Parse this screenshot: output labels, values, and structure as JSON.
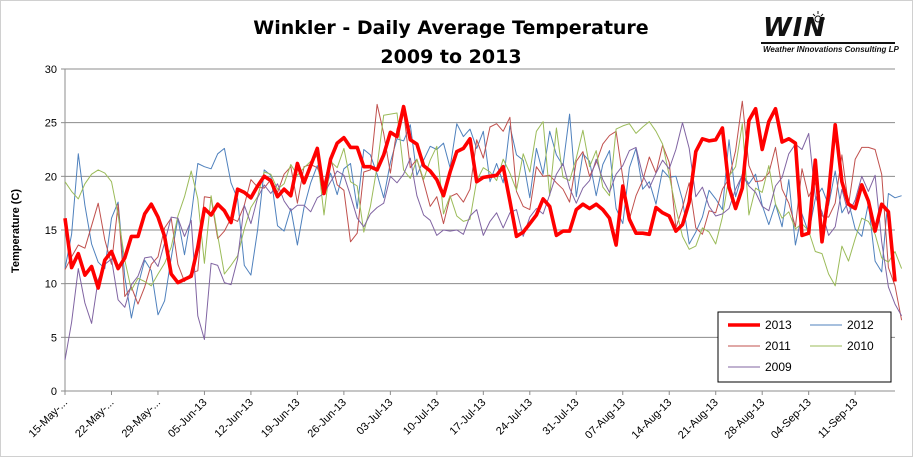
{
  "colors": {
    "2013": "#ff0000",
    "2012": "#4f81bd",
    "2011": "#c0504d",
    "2010": "#9bbb59",
    "2009": "#8064a2",
    "grid": "#8c8c8c",
    "axis": "#8c8c8c"
  },
  "logo": {
    "word": "WIN",
    "subtitle": "Weather INnovations Consulting LP",
    "sun_icon": "sun-icon"
  },
  "chart_data": {
    "type": "line",
    "title_line1": "Winkler  - Daily Average Temperature",
    "title_line2": "2009 to 2013",
    "xlabel": "",
    "ylabel": "Temperature (C)",
    "ylim": [
      0,
      30
    ],
    "yticks": [
      0,
      5,
      10,
      15,
      20,
      25,
      30
    ],
    "grid": true,
    "legend_position": "bottom-right",
    "x_start": "15-May",
    "x_end": "17-Sep",
    "x_ticks": [
      "15-May-...",
      "22-May-...",
      "29-May-...",
      "05-Jun-13",
      "12-Jun-13",
      "19-Jun-13",
      "26-Jun-13",
      "03-Jul-13",
      "10-Jul-13",
      "17-Jul-13",
      "24-Jul-13",
      "31-Jul-13",
      "07-Aug-13",
      "14-Aug-13",
      "21-Aug-13",
      "28-Aug-13",
      "04-Sep-13",
      "11-Sep-13"
    ],
    "series": [
      {
        "name": "2013",
        "values": [
          16.1,
          11.5,
          12.8,
          10.8,
          11.6,
          9.6,
          12.2,
          13.0,
          11.4,
          12.4,
          14.4,
          14.4,
          16.5,
          17.4,
          16.2,
          14.4,
          10.9,
          10.1,
          10.4,
          10.7,
          13.4,
          17.0,
          16.4,
          17.4,
          16.8,
          15.7,
          18.8,
          18.5,
          18.0,
          19.1,
          20.0,
          19.6,
          18.1,
          18.8,
          18.2,
          21.2,
          19.4,
          21.0,
          22.6,
          18.4,
          21.6,
          23.1,
          23.6,
          22.7,
          22.7,
          20.9,
          20.9,
          20.6,
          22.0,
          24.1,
          23.7,
          26.5,
          23.4,
          23.0,
          21.0,
          20.5,
          19.7,
          18.2,
          20.4,
          22.3,
          22.6,
          23.5,
          19.5,
          19.9,
          20.0,
          20.1,
          20.9,
          17.7,
          14.4,
          14.8,
          15.6,
          16.4,
          17.9,
          17.2,
          14.5,
          14.9,
          14.9,
          16.9,
          17.4,
          17.0,
          17.4,
          16.9,
          16.1,
          13.6,
          19.1,
          16.0,
          14.7,
          14.7,
          14.6,
          17.1,
          16.6,
          16.3,
          14.9,
          15.5,
          17.6,
          22.3,
          23.5,
          23.3,
          23.4,
          24.5,
          19.0,
          17.0,
          18.9,
          25.2,
          26.3,
          22.5,
          25.1,
          26.3,
          23.2,
          23.5,
          23.1,
          14.5,
          14.7,
          21.5,
          13.9,
          18.4,
          24.8,
          19.5,
          17.4,
          17.0,
          19.2,
          17.7,
          14.9,
          17.4,
          16.7,
          10.2
        ]
      },
      {
        "name": "2012",
        "values": [
          11.4,
          14.6,
          22.1,
          17.3,
          13.7,
          12.0,
          11.4,
          16.1,
          17.6,
          10.6,
          6.8,
          9.8,
          12.2,
          11.2,
          7.1,
          8.4,
          12.4,
          16.1,
          12.7,
          16.3,
          21.2,
          20.9,
          20.7,
          22.1,
          22.6,
          19.4,
          17.9,
          11.7,
          10.8,
          15.0,
          20.6,
          20.1,
          15.4,
          14.9,
          17.0,
          13.6,
          17.1,
          19.4,
          21.0,
          18.4,
          20.3,
          18.3,
          20.7,
          21.2,
          17.0,
          22.5,
          22.0,
          20.2,
          18.0,
          21.3,
          23.5,
          23.3,
          24.8,
          20.1,
          21.5,
          22.8,
          22.5,
          23.1,
          20.8,
          24.9,
          23.7,
          24.4,
          22.6,
          24.2,
          19.5,
          21.2,
          19.4,
          24.7,
          22.0,
          21.5,
          18.0,
          22.6,
          20.2,
          24.2,
          22.0,
          21.0,
          25.8,
          18.1,
          22.1,
          21.4,
          18.2,
          21.1,
          22.4,
          17.0,
          15.6,
          20.8,
          22.6,
          18.8,
          19.5,
          17.4,
          20.6,
          19.9,
          20.0,
          17.8,
          13.7,
          14.8,
          16.2,
          18.7,
          17.9,
          16.9,
          23.4,
          18.1,
          20.2,
          19.3,
          20.2,
          17.3,
          15.5,
          17.4,
          15.3,
          19.7,
          13.6,
          16.5,
          14.7,
          17.9,
          18.9,
          17.3,
          20.5,
          16.6,
          17.6,
          15.1,
          14.4,
          17.5,
          12.1,
          11.1,
          18.4,
          18.0,
          18.2
        ]
      },
      {
        "name": "2011",
        "values": [
          11.3,
          12.5,
          13.6,
          13.3,
          15.4,
          17.5,
          14.1,
          11.8,
          17.4,
          8.8,
          9.7,
          8.1,
          9.7,
          11.8,
          12.5,
          15.2,
          16.1,
          11.8,
          10.2,
          11.0,
          11.2,
          18.1,
          18.0,
          14.2,
          14.9,
          16.1,
          15.8,
          17.3,
          19.7,
          19.0,
          18.9,
          19.7,
          18.5,
          20.2,
          20.9,
          17.5,
          20.9,
          21.1,
          20.8,
          19.3,
          21.8,
          19.2,
          18.7,
          13.9,
          14.7,
          20.4,
          20.6,
          26.7,
          24.0,
          20.3,
          24.4,
          26.0,
          20.8,
          21.6,
          19.5,
          17.2,
          18.1,
          15.6,
          18.1,
          18.4,
          17.6,
          18.8,
          23.4,
          21.7,
          24.6,
          24.9,
          24.2,
          25.5,
          18.6,
          17.2,
          16.9,
          20.9,
          20.0,
          20.1,
          19.4,
          18.8,
          17.6,
          21.4,
          22.3,
          20.0,
          21.3,
          23.0,
          23.8,
          24.2,
          19.9,
          16.0,
          18.2,
          19.6,
          21.8,
          20.3,
          22.9,
          21.3,
          15.2,
          17.1,
          19.4,
          15.2,
          14.6,
          16.8,
          16.6,
          18.8,
          19.8,
          22.4,
          27.0,
          21.0,
          19.5,
          19.6,
          20.3,
          22.7,
          18.8,
          17.5,
          15.3,
          20.7,
          18.1,
          19.4,
          16.3,
          16.2,
          17.5,
          22.0,
          17.3,
          21.6,
          22.7,
          22.7,
          22.5,
          20.2,
          11.5,
          9.8,
          6.6
        ]
      },
      {
        "name": "2010",
        "values": [
          19.5,
          18.6,
          17.9,
          19.3,
          20.2,
          20.6,
          20.3,
          19.5,
          16.4,
          12.2,
          9.4,
          10.5,
          10.2,
          9.8,
          10.9,
          11.9,
          13.4,
          16.3,
          18.1,
          20.5,
          17.9,
          11.9,
          18.2,
          14.5,
          10.9,
          11.7,
          12.6,
          15.1,
          17.1,
          18.1,
          20.4,
          20.2,
          18.8,
          19.3,
          21.1,
          20.1,
          20.8,
          21.4,
          21.9,
          16.4,
          21.4,
          20.8,
          22.6,
          19.5,
          19.1,
          14.8,
          17.2,
          20.9,
          25.7,
          25.8,
          25.9,
          20.6,
          19.8,
          21.6,
          19.7,
          21.5,
          22.8,
          16.5,
          18.2,
          16.3,
          15.8,
          16.0,
          19.6,
          20.8,
          20.4,
          19.6,
          21.6,
          20.3,
          18.7,
          22.1,
          20.4,
          24.2,
          25.1,
          18.2,
          24.5,
          19.9,
          19.6,
          21.7,
          24.3,
          20.9,
          22.4,
          19.0,
          18.2,
          24.4,
          24.7,
          24.9,
          24.0,
          24.6,
          25.1,
          24.2,
          23.0,
          20.1,
          17.0,
          14.4,
          13.2,
          13.5,
          15.2,
          14.8,
          13.7,
          16.2,
          20.0,
          20.9,
          24.9,
          16.4,
          18.9,
          18.5,
          21.0,
          17.4,
          16.1,
          16.7,
          15.1,
          15.6,
          14.9,
          13.0,
          12.8,
          10.9,
          9.8,
          13.5,
          12.1,
          14.2,
          16.1,
          15.8,
          14.6,
          12.4,
          12.0,
          13.0,
          11.4
        ]
      },
      {
        "name": "2009",
        "values": [
          2.9,
          6.4,
          11.4,
          8.2,
          6.3,
          10.4,
          11.8,
          12.3,
          8.5,
          7.8,
          9.9,
          10.7,
          12.4,
          12.5,
          11.6,
          13.8,
          16.2,
          16.1,
          14.4,
          15.9,
          7.0,
          4.8,
          11.9,
          11.7,
          10.1,
          9.9,
          12.3,
          17.3,
          15.6,
          18.0,
          19.2,
          18.4,
          19.3,
          17.7,
          16.8,
          17.3,
          17.3,
          16.7,
          18.0,
          18.4,
          19.5,
          20.5,
          20.1,
          18.2,
          16.1,
          15.3,
          16.5,
          17.1,
          17.5,
          20.0,
          19.4,
          20.2,
          21.7,
          18.2,
          16.4,
          15.9,
          14.5,
          15.0,
          14.9,
          15.0,
          14.6,
          16.3,
          16.9,
          14.5,
          15.8,
          16.6,
          15.2,
          16.6,
          16.9,
          14.4,
          16.2,
          17.0,
          16.5,
          18.3,
          20.2,
          21.2,
          18.9,
          17.5,
          18.9,
          19.6,
          21.6,
          19.7,
          18.5,
          20.2,
          21.0,
          22.4,
          22.7,
          20.1,
          18.9,
          20.3,
          21.5,
          20.7,
          22.5,
          25.0,
          22.6,
          18.1,
          19.0,
          17.2,
          16.3,
          16.5,
          17.0,
          18.8,
          20.1,
          19.1,
          18.5,
          17.2,
          16.8,
          19.1,
          19.9,
          22.1,
          23.0,
          22.5,
          24.0,
          18.1,
          16.7,
          14.5,
          15.3,
          18.8,
          16.5,
          17.8,
          20.0,
          18.6,
          20.1,
          13.9,
          9.7,
          8.1,
          7.0
        ]
      }
    ],
    "legend": [
      {
        "name": "2013",
        "col": 0,
        "row": 0
      },
      {
        "name": "2012",
        "col": 1,
        "row": 0
      },
      {
        "name": "2011",
        "col": 0,
        "row": 1
      },
      {
        "name": "2010",
        "col": 1,
        "row": 1
      },
      {
        "name": "2009",
        "col": 0,
        "row": 2
      }
    ]
  }
}
